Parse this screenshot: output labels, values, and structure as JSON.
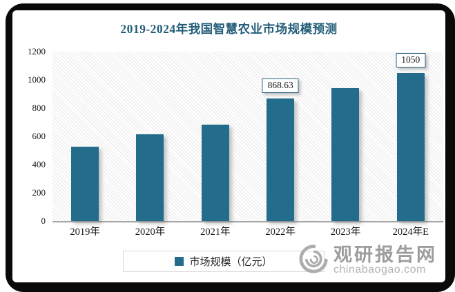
{
  "frame": {
    "border_color": "#0a0a0a",
    "panel_color": "#ffffff"
  },
  "chart_data": {
    "type": "bar",
    "title": "2019-2024年我国智慧农业市场规模预测",
    "title_color": "#235D78",
    "categories": [
      "2019年",
      "2020年",
      "2021年",
      "2022年",
      "2023年",
      "2024年E"
    ],
    "series": [
      {
        "name": "市场规模（亿元）",
        "values": [
          525,
          615,
          685,
          868.63,
          940,
          1050
        ]
      }
    ],
    "data_labels": {
      "3": "868.63",
      "5": "1050"
    },
    "ylim": [
      0,
      1200
    ],
    "yticks": [
      "0",
      "200",
      "400",
      "600",
      "800",
      "1000",
      "1200"
    ],
    "xlabel": "",
    "ylabel": "",
    "grid": false,
    "plot_background": "diagonal-hatch",
    "bar_color": "#236C8C",
    "axis_line_color": "#a6a6a6",
    "legend": {
      "position": "bottom",
      "label": "市场规模（亿元）"
    }
  },
  "watermark": {
    "icon": "spiral-logo-icon",
    "site_name": "观研报告网",
    "site_url": "chinabaogao.com",
    "color": "#9d9d9d"
  }
}
